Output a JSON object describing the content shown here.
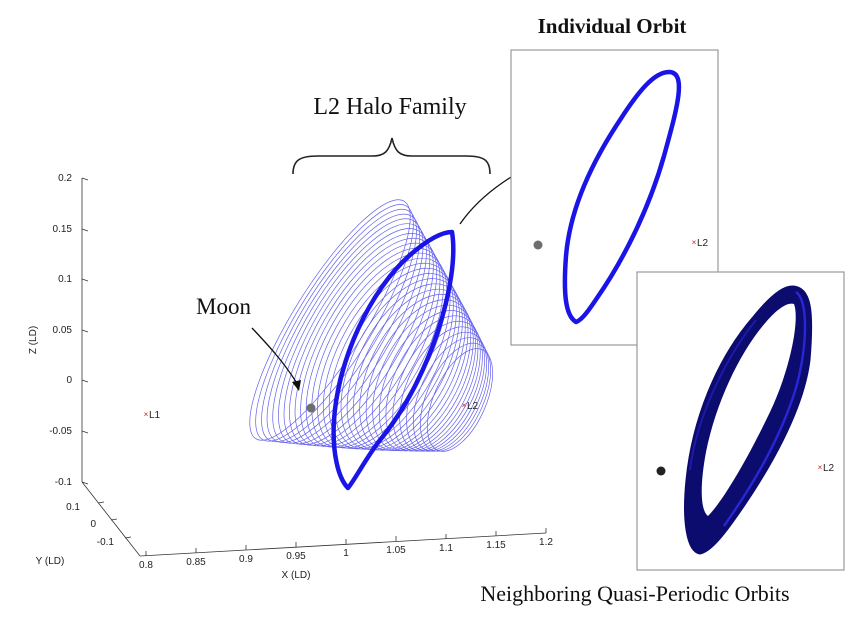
{
  "titles": {
    "family": "L2 Halo Family",
    "individual": "Individual Orbit",
    "quasi": "Neighboring Quasi-Periodic Orbits"
  },
  "labels": {
    "moon": "Moon",
    "l1": "L1",
    "l2": "L2",
    "l2_panel1": "L2",
    "l2_panel2": "L2"
  },
  "axes": {
    "z_label": "Z (LD)",
    "y_label": "Y (LD)",
    "x_label": "X (LD)",
    "z_ticks": [
      "0.2",
      "0.15",
      "0.1",
      "0.05",
      "0",
      "-0.05",
      "-0.1"
    ],
    "y_ticks": [
      "0.1",
      "0",
      "-0.1"
    ],
    "x_ticks": [
      "0.8",
      "0.85",
      "0.9",
      "0.95",
      "1",
      "1.05",
      "1.1",
      "1.15",
      "1.2"
    ]
  },
  "colors": {
    "orbit_blue": "#1a14e6",
    "family_blue": "#4a46e8",
    "quasi_dark": "#0c0b6e",
    "moon_gray": "#6e6e6e",
    "lagrange_red": "#d01818",
    "frame_gray": "#9a9a9a"
  }
}
